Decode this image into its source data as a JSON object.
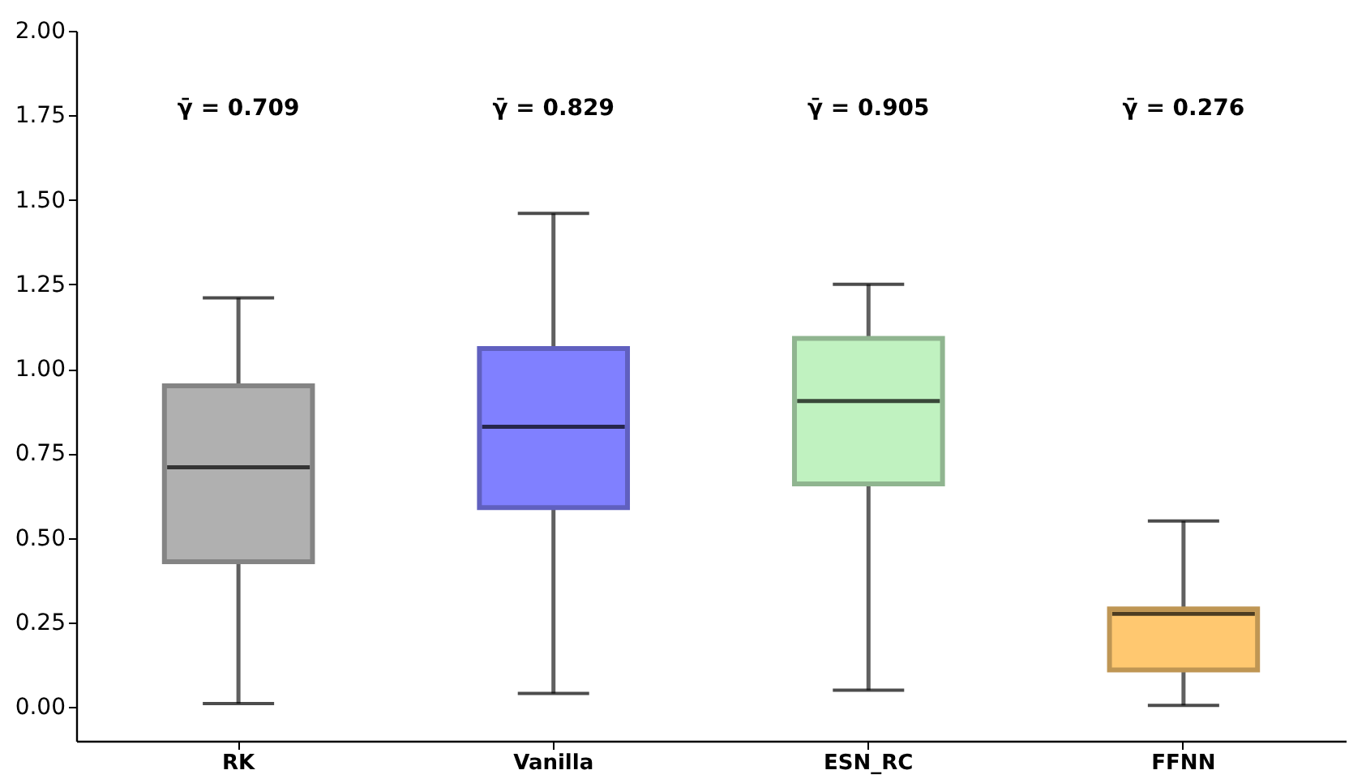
{
  "chart_data": {
    "type": "box",
    "categories": [
      "RK",
      "Vanilla",
      "ESN_RC",
      "FFNN"
    ],
    "boxes": [
      {
        "low": 0.01,
        "q1": 0.43,
        "median": 0.709,
        "q3": 0.95,
        "high": 1.21
      },
      {
        "low": 0.04,
        "q1": 0.59,
        "median": 0.829,
        "q3": 1.06,
        "high": 1.46
      },
      {
        "low": 0.05,
        "q1": 0.66,
        "median": 0.905,
        "q3": 1.09,
        "high": 1.25
      },
      {
        "low": 0.005,
        "q1": 0.11,
        "median": 0.276,
        "q3": 0.29,
        "high": 0.55
      }
    ],
    "colors": [
      "#b0b0b0",
      "#8080ff",
      "#c0f2c0",
      "#ffc870"
    ],
    "ylim": [
      -0.1,
      2.0
    ],
    "yticks": [
      {
        "value": 0,
        "label": "0.00"
      },
      {
        "value": 0.25,
        "label": "0.25"
      },
      {
        "value": 0.5,
        "label": "0.50"
      },
      {
        "value": 0.75,
        "label": "0.75"
      },
      {
        "value": 1,
        "label": "1.00"
      },
      {
        "value": 1.25,
        "label": "1.25"
      },
      {
        "value": 1.5,
        "label": "1.50"
      },
      {
        "value": 1.75,
        "label": "1.75"
      },
      {
        "value": 2,
        "label": "2.00"
      }
    ],
    "annotations": [
      "γ̄ = 0.709",
      "γ̄ = 0.829",
      "γ̄ = 0.905",
      "γ̄ = 0.276"
    ],
    "grid": false
  }
}
